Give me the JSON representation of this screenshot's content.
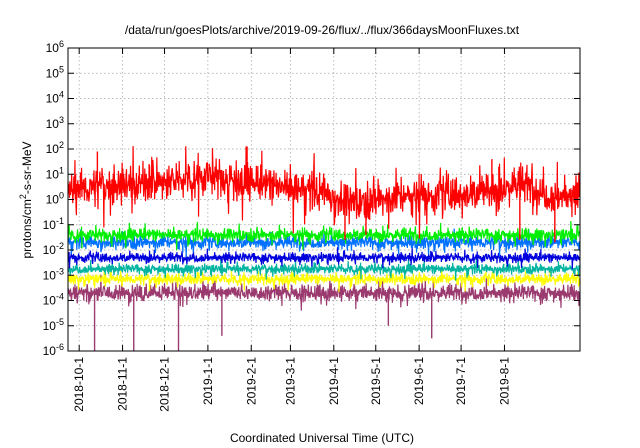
{
  "chart_data": {
    "type": "line",
    "title": "/data/run/goesPlots/archive/2019-09-26/flux/../flux/366daysMoonFluxes.txt",
    "xlabel": "Coordinated Universal Time (UTC)",
    "ylabel_parts": [
      "protons/cm",
      "2",
      "-s-sr-MeV"
    ],
    "yscale": "log",
    "ylim_exp": [
      -6,
      6
    ],
    "ytick_exponents": [
      -6,
      -5,
      -4,
      -3,
      -2,
      -1,
      0,
      1,
      2,
      3,
      4,
      5,
      6
    ],
    "ytick_base": "10",
    "xlim_days": [
      -8,
      358
    ],
    "xticks": [
      {
        "label": "2018-10-1",
        "day": 0
      },
      {
        "label": "2018-11-1",
        "day": 31
      },
      {
        "label": "2018-12-1",
        "day": 61
      },
      {
        "label": "2019-1-1",
        "day": 92
      },
      {
        "label": "2019-2-1",
        "day": 123
      },
      {
        "label": "2019-3-1",
        "day": 151
      },
      {
        "label": "2019-4-1",
        "day": 182
      },
      {
        "label": "2019-5-1",
        "day": 212
      },
      {
        "label": "2019-6-1",
        "day": 243
      },
      {
        "label": "2019-7-1",
        "day": 273
      },
      {
        "label": "2019-8-1",
        "day": 304
      }
    ],
    "grid": true,
    "series": [
      {
        "color": "#ff0000",
        "log_center_points": [
          [
            -8,
            0.4
          ],
          [
            30,
            0.6
          ],
          [
            70,
            0.7
          ],
          [
            75,
            0.9
          ],
          [
            100,
            0.9
          ],
          [
            130,
            0.6
          ],
          [
            175,
            0.3
          ],
          [
            190,
            -0.1
          ],
          [
            240,
            0.15
          ],
          [
            260,
            0.2
          ],
          [
            300,
            0.35
          ],
          [
            310,
            0.6
          ],
          [
            320,
            0.55
          ],
          [
            340,
            0.1
          ],
          [
            358,
            0.2
          ]
        ],
        "noise_log": 0.35,
        "spikes": [
          [
            13,
            1.9
          ],
          [
            120,
            2.1
          ],
          [
            50,
            1.4
          ],
          [
            295,
            1.6
          ],
          [
            300,
            1.3
          ]
        ],
        "dips": [
          [
            190,
            -1.6
          ],
          [
            205,
            -1.4
          ],
          [
            315,
            -1.6
          ],
          [
            340,
            -1.7
          ]
        ]
      },
      {
        "color": "#00ee00",
        "log_center_points": [
          [
            -8,
            -1.4
          ],
          [
            358,
            -1.4
          ]
        ],
        "noise_log": 0.12
      },
      {
        "color": "#0070ff",
        "log_center_points": [
          [
            -8,
            -1.7
          ],
          [
            358,
            -1.7
          ]
        ],
        "noise_log": 0.12
      },
      {
        "color": "#0000dd",
        "log_center_points": [
          [
            -8,
            -2.3
          ],
          [
            358,
            -2.3
          ]
        ],
        "noise_log": 0.09
      },
      {
        "color": "#00b4a0",
        "log_center_points": [
          [
            -8,
            -2.75
          ],
          [
            358,
            -2.75
          ]
        ],
        "noise_log": 0.09
      },
      {
        "color": "#ffff00",
        "log_center_points": [
          [
            -8,
            -3.15
          ],
          [
            358,
            -3.15
          ]
        ],
        "noise_log": 0.1
      },
      {
        "color": "#9b3a6e",
        "log_center_points": [
          [
            -8,
            -3.7
          ],
          [
            358,
            -3.7
          ]
        ],
        "noise_log": 0.15,
        "dips": [
          [
            11,
            -6.2
          ],
          [
            39,
            -6.2
          ],
          [
            71,
            -6.2
          ],
          [
            102,
            -5.4
          ],
          [
            221,
            -5.0
          ],
          [
            252,
            -5.5
          ]
        ]
      }
    ]
  }
}
